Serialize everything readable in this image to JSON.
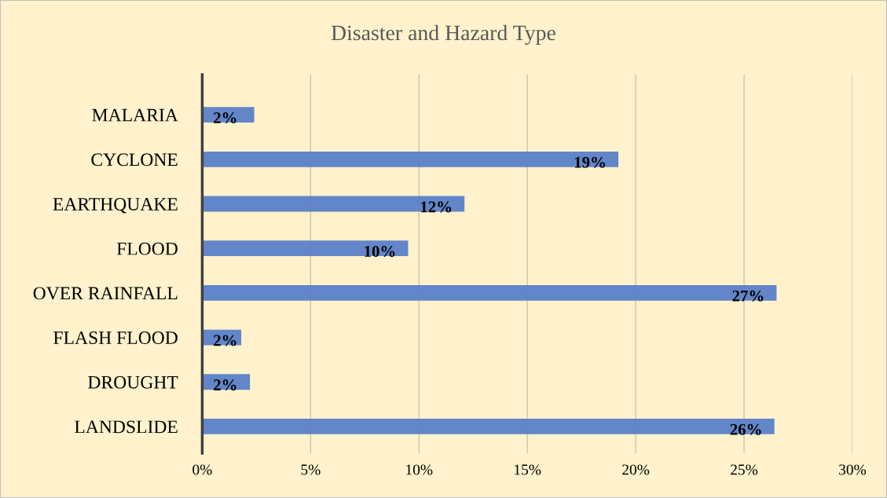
{
  "chart_data": {
    "type": "bar",
    "orientation": "horizontal",
    "title": "Disaster and Hazard Type",
    "categories": [
      "MALARIA",
      "CYCLONE",
      "EARTHQUAKE",
      "FLOOD",
      "OVER RAINFALL",
      "FLASH FLOOD",
      "DROUGHT",
      "LANDSLIDE"
    ],
    "values": [
      2.4,
      19.2,
      12.1,
      9.5,
      26.5,
      1.8,
      2.2,
      26.4
    ],
    "value_labels": [
      "2%",
      "19%",
      "12%",
      "10%",
      "27%",
      "2%",
      "2%",
      "26%"
    ],
    "color": "#5b80c8",
    "xlim": [
      0,
      30
    ],
    "xticks": [
      {
        "value": 0,
        "label": "0%"
      },
      {
        "value": 5,
        "label": "5%"
      },
      {
        "value": 10,
        "label": "10%"
      },
      {
        "value": 15,
        "label": "15%"
      },
      {
        "value": 20,
        "label": "20%"
      },
      {
        "value": 25,
        "label": "25%"
      },
      {
        "value": 30,
        "label": "30%"
      }
    ],
    "grid": "x",
    "legend": false
  }
}
